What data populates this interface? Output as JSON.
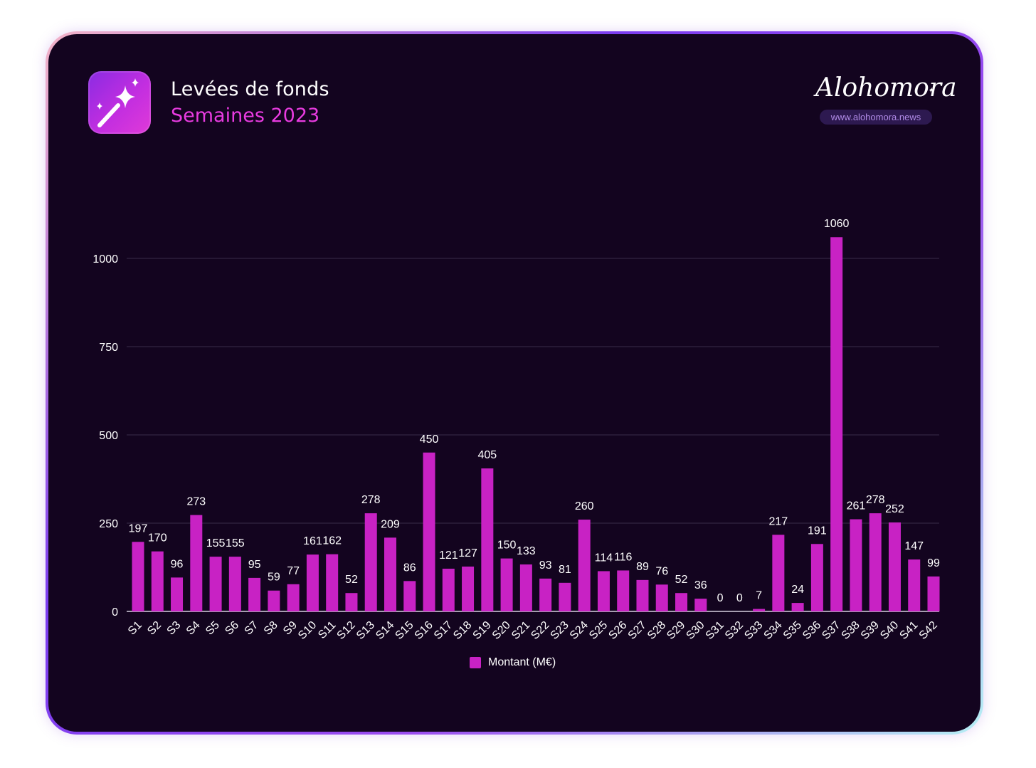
{
  "header": {
    "title": "Levées de fonds",
    "subtitle": "Semaines 2023",
    "icon": "magic-wand-icon"
  },
  "brand": {
    "logo_text": "Alohomora",
    "url": "www.alohomora.news"
  },
  "colors": {
    "bar": "#c822c4",
    "background": "#13041f",
    "subtitle": "#e83be0"
  },
  "chart_data": {
    "type": "bar",
    "categories": [
      "S1",
      "S2",
      "S3",
      "S4",
      "S5",
      "S6",
      "S7",
      "S8",
      "S9",
      "S10",
      "S11",
      "S12",
      "S13",
      "S14",
      "S15",
      "S16",
      "S17",
      "S18",
      "S19",
      "S20",
      "S21",
      "S22",
      "S23",
      "S24",
      "S25",
      "S26",
      "S27",
      "S28",
      "S29",
      "S30",
      "S31",
      "S32",
      "S33",
      "S34",
      "S35",
      "S36",
      "S37",
      "S38",
      "S39",
      "S40",
      "S41",
      "S42"
    ],
    "series": [
      {
        "name": "Montant (M€)",
        "values": [
          197,
          170,
          96,
          273,
          155,
          155,
          95,
          59,
          77,
          161,
          162,
          52,
          278,
          209,
          86,
          450,
          121,
          127,
          405,
          150,
          133,
          93,
          81,
          260,
          114,
          116,
          89,
          76,
          52,
          36,
          0,
          0,
          7,
          217,
          24,
          191,
          1060,
          261,
          278,
          252,
          147,
          99
        ]
      }
    ],
    "yticks": [
      0,
      250,
      500,
      750,
      1000
    ],
    "ylim": [
      0,
      1110
    ],
    "grid": true,
    "legend": "bottom"
  }
}
